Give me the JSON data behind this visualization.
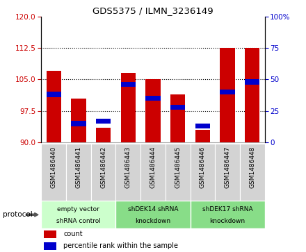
{
  "title": "GDS5375 / ILMN_3236149",
  "samples": [
    "GSM1486440",
    "GSM1486441",
    "GSM1486442",
    "GSM1486443",
    "GSM1486444",
    "GSM1486445",
    "GSM1486446",
    "GSM1486447",
    "GSM1486448"
  ],
  "count_values": [
    107.0,
    100.5,
    93.5,
    106.5,
    105.0,
    101.5,
    93.0,
    112.5,
    112.5
  ],
  "percentile_values": [
    38,
    15,
    17,
    46,
    35,
    28,
    13,
    40,
    48
  ],
  "ylim_left": [
    90,
    120
  ],
  "ylim_right": [
    0,
    100
  ],
  "yticks_left": [
    90,
    97.5,
    105,
    112.5,
    120
  ],
  "yticks_right": [
    0,
    25,
    50,
    75,
    100
  ],
  "bar_color": "#cc0000",
  "blue_color": "#0000cc",
  "bg_color": "#ffffff",
  "sample_box_color": "#d3d3d3",
  "groups": [
    {
      "label": "empty vector\nshRNA control",
      "indices": [
        0,
        1,
        2
      ],
      "color": "#ccffcc"
    },
    {
      "label": "shDEK14 shRNA\nknockdown",
      "indices": [
        3,
        4,
        5
      ],
      "color": "#88dd88"
    },
    {
      "label": "shDEK17 shRNA\nknockdown",
      "indices": [
        6,
        7,
        8
      ],
      "color": "#88dd88"
    }
  ],
  "protocol_label": "protocol",
  "legend_count_label": "count",
  "legend_percentile_label": "percentile rank within the sample",
  "bar_width": 0.6,
  "blue_bar_height": 1.2
}
